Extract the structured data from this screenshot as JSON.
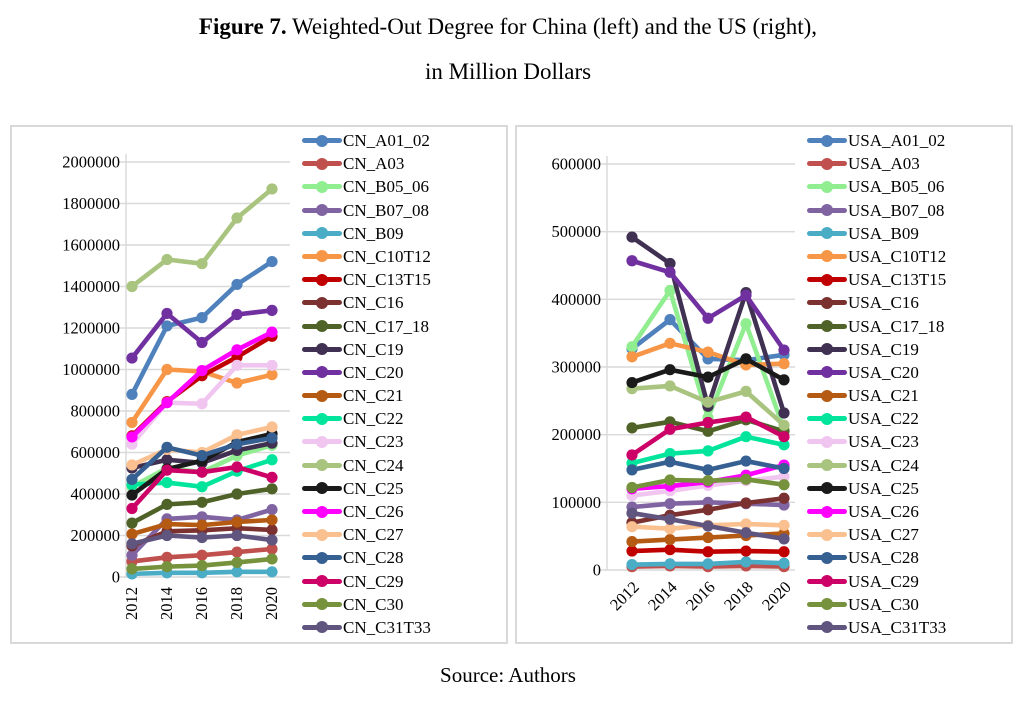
{
  "title": {
    "bold_part": "Figure 7.",
    "line1_rest": " Weighted-Out Degree for China (left) and the US (right),",
    "line2": "in Million Dollars"
  },
  "source": "Source: Authors",
  "colors": {
    "grid": "#d9d9d9",
    "panel_border": "#d9d9d9",
    "axis_text": "#000000"
  },
  "chart_data": [
    {
      "type": "line",
      "title": "China weighted-out degree",
      "x": [
        "2012",
        "2014",
        "2016",
        "2018",
        "2020"
      ],
      "ylim": [
        0,
        2000000
      ],
      "ytick_step": 200000,
      "grid": true,
      "legend_position": "right",
      "series": [
        {
          "name": "CN_A01_02",
          "color": "#4F81BD",
          "values": [
            880000,
            1210000,
            1250000,
            1410000,
            1520000
          ]
        },
        {
          "name": "CN_A03",
          "color": "#C0504D",
          "values": [
            75000,
            95000,
            105000,
            120000,
            135000
          ]
        },
        {
          "name": "CN_B05_06",
          "color": "#90EE90",
          "values": [
            435000,
            525000,
            505000,
            585000,
            635000
          ]
        },
        {
          "name": "CN_B07_08",
          "color": "#8064A2",
          "values": [
            105000,
            280000,
            290000,
            275000,
            325000
          ]
        },
        {
          "name": "CN_B09",
          "color": "#4BACC6",
          "values": [
            15000,
            20000,
            20000,
            25000,
            25000
          ]
        },
        {
          "name": "CN_C10T12",
          "color": "#F79646",
          "values": [
            745000,
            1000000,
            990000,
            935000,
            975000
          ]
        },
        {
          "name": "CN_C13T15",
          "color": "#C00000",
          "values": [
            680000,
            845000,
            970000,
            1060000,
            1160000
          ]
        },
        {
          "name": "CN_C16",
          "color": "#7B3130",
          "values": [
            150000,
            220000,
            225000,
            235000,
            227000
          ]
        },
        {
          "name": "CN_C17_18",
          "color": "#4F6228",
          "values": [
            260000,
            350000,
            360000,
            400000,
            425000
          ]
        },
        {
          "name": "CN_C19",
          "color": "#403152",
          "values": [
            525000,
            565000,
            550000,
            610000,
            645000
          ]
        },
        {
          "name": "CN_C20",
          "color": "#7030A0",
          "values": [
            1055000,
            1270000,
            1130000,
            1265000,
            1285000
          ]
        },
        {
          "name": "CN_C21",
          "color": "#B55A12",
          "values": [
            207000,
            255000,
            250000,
            265000,
            275000
          ]
        },
        {
          "name": "CN_C22",
          "color": "#00E59B",
          "values": [
            445000,
            455000,
            435000,
            510000,
            565000
          ]
        },
        {
          "name": "CN_C23",
          "color": "#F0C6F0",
          "values": [
            640000,
            840000,
            835000,
            1020000,
            1020000
          ]
        },
        {
          "name": "CN_C24",
          "color": "#A9C47F",
          "values": [
            1400000,
            1530000,
            1510000,
            1730000,
            1870000
          ]
        },
        {
          "name": "CN_C25",
          "color": "#1A1A1A",
          "values": [
            395000,
            520000,
            560000,
            650000,
            690000
          ]
        },
        {
          "name": "CN_C26",
          "color": "#FF00FF",
          "values": [
            675000,
            840000,
            995000,
            1095000,
            1180000
          ]
        },
        {
          "name": "CN_C27",
          "color": "#FAC08F",
          "values": [
            540000,
            615000,
            600000,
            685000,
            723000
          ]
        },
        {
          "name": "CN_C28",
          "color": "#366092",
          "values": [
            470000,
            625000,
            585000,
            640000,
            670000
          ]
        },
        {
          "name": "CN_C29",
          "color": "#CC0066",
          "values": [
            330000,
            515000,
            505000,
            530000,
            480000
          ]
        },
        {
          "name": "CN_C30",
          "color": "#76923C",
          "values": [
            39000,
            50000,
            55000,
            70000,
            87000
          ]
        },
        {
          "name": "CN_C31T33",
          "color": "#60557F",
          "values": [
            160000,
            200000,
            190000,
            200000,
            178000
          ]
        }
      ]
    },
    {
      "type": "line",
      "title": "US weighted-out degree",
      "x": [
        "2012",
        "2014",
        "2016",
        "2018",
        "2020"
      ],
      "ylim": [
        0,
        600000
      ],
      "ytick_step": 100000,
      "grid": true,
      "legend_position": "right",
      "series": [
        {
          "name": "USA_A01_02",
          "color": "#4F81BD",
          "values": [
            327000,
            370000,
            312000,
            310000,
            318000
          ]
        },
        {
          "name": "USA_A03",
          "color": "#C0504D",
          "values": [
            5000,
            6000,
            5000,
            6000,
            5000
          ]
        },
        {
          "name": "USA_B05_06",
          "color": "#90EE90",
          "values": [
            330000,
            413000,
            225000,
            364000,
            208000
          ]
        },
        {
          "name": "USA_B07_08",
          "color": "#8064A2",
          "values": [
            93000,
            98000,
            100000,
            98000,
            96000
          ]
        },
        {
          "name": "USA_B09",
          "color": "#4BACC6",
          "values": [
            8000,
            9000,
            9000,
            12000,
            10000
          ]
        },
        {
          "name": "USA_C10T12",
          "color": "#F79646",
          "values": [
            315000,
            335000,
            322000,
            303000,
            305000
          ]
        },
        {
          "name": "USA_C13T15",
          "color": "#C00000",
          "values": [
            28000,
            30000,
            27000,
            28000,
            27000
          ]
        },
        {
          "name": "USA_C16",
          "color": "#7B3130",
          "values": [
            70000,
            81000,
            89000,
            99000,
            106000
          ]
        },
        {
          "name": "USA_C17_18",
          "color": "#4F6228",
          "values": [
            210000,
            219000,
            205000,
            222000,
            205000
          ]
        },
        {
          "name": "USA_C19",
          "color": "#403152",
          "values": [
            492000,
            453000,
            242000,
            410000,
            232000
          ]
        },
        {
          "name": "USA_C20",
          "color": "#7030A0",
          "values": [
            457000,
            440000,
            372000,
            406000,
            325000
          ]
        },
        {
          "name": "USA_C21",
          "color": "#B55A12",
          "values": [
            42000,
            45000,
            48000,
            51000,
            54000
          ]
        },
        {
          "name": "USA_C22",
          "color": "#00E59B",
          "values": [
            158000,
            172000,
            176000,
            197000,
            185000
          ]
        },
        {
          "name": "USA_C23",
          "color": "#F0C6F0",
          "values": [
            110000,
            117000,
            125000,
            132000,
            138000
          ]
        },
        {
          "name": "USA_C24",
          "color": "#A9C47F",
          "values": [
            268000,
            272000,
            248000,
            264000,
            214000
          ]
        },
        {
          "name": "USA_C25",
          "color": "#1A1A1A",
          "values": [
            277000,
            296000,
            285000,
            312000,
            281000
          ]
        },
        {
          "name": "USA_C26",
          "color": "#FF00FF",
          "values": [
            120000,
            124000,
            130000,
            140000,
            155000
          ]
        },
        {
          "name": "USA_C27",
          "color": "#FAC08F",
          "values": [
            64000,
            61000,
            66000,
            68000,
            66000
          ]
        },
        {
          "name": "USA_C28",
          "color": "#366092",
          "values": [
            148000,
            160000,
            148000,
            161000,
            150000
          ]
        },
        {
          "name": "USA_C29",
          "color": "#CC0066",
          "values": [
            170000,
            208000,
            218000,
            226000,
            197000
          ]
        },
        {
          "name": "USA_C30",
          "color": "#76923C",
          "values": [
            122000,
            133000,
            132000,
            134000,
            126000
          ]
        },
        {
          "name": "USA_C31T33",
          "color": "#60557F",
          "values": [
            84000,
            75000,
            65000,
            55000,
            46000
          ]
        }
      ]
    }
  ]
}
